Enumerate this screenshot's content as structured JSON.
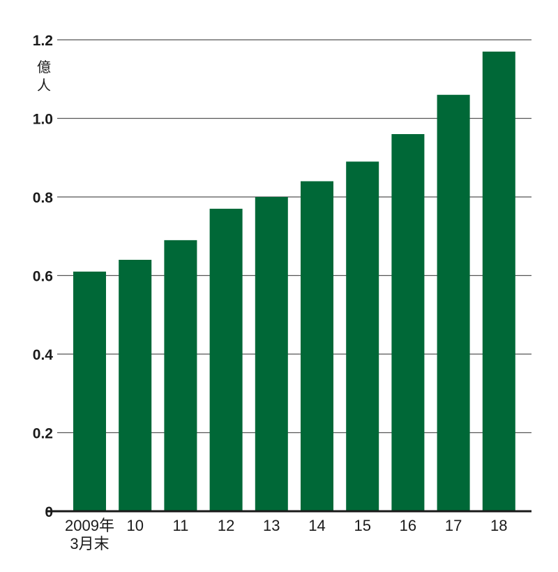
{
  "chart_data": {
    "type": "bar",
    "categories": [
      "2009年3月末",
      "10",
      "11",
      "12",
      "13",
      "14",
      "15",
      "16",
      "17",
      "18"
    ],
    "values": [
      0.61,
      0.64,
      0.69,
      0.77,
      0.8,
      0.84,
      0.89,
      0.96,
      1.06,
      1.17
    ],
    "ylabel": "億人",
    "ylim": [
      0,
      1.2
    ],
    "yticks": [
      "0",
      "0.2",
      "0.4",
      "0.6",
      "0.8",
      "1.0",
      "1.2"
    ],
    "grid": true,
    "bar_color": "#006837"
  }
}
